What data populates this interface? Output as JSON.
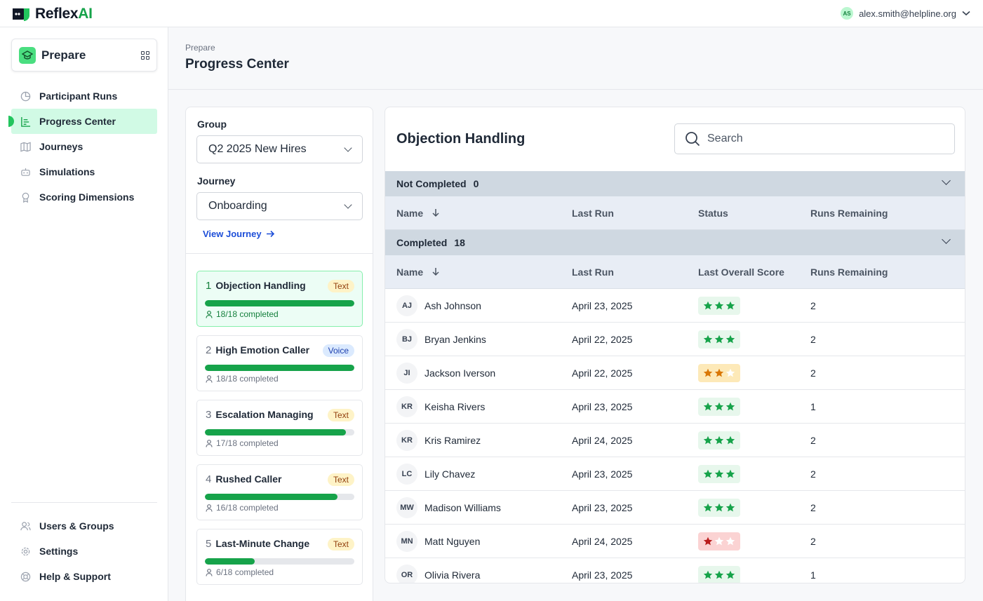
{
  "brand": {
    "name_part1": "Reflex",
    "name_part2": "AI"
  },
  "user": {
    "initials": "AS",
    "email": "alex.smith@helpline.org"
  },
  "sidebar": {
    "app_name": "Prepare",
    "items": [
      {
        "label": "Participant Runs",
        "icon": "pie-chart-icon"
      },
      {
        "label": "Progress Center",
        "icon": "bar-list-icon",
        "active": true
      },
      {
        "label": "Journeys",
        "icon": "map-icon"
      },
      {
        "label": "Simulations",
        "icon": "bot-icon"
      },
      {
        "label": "Scoring Dimensions",
        "icon": "award-icon"
      }
    ],
    "bottom_items": [
      {
        "label": "Users & Groups",
        "icon": "users-icon"
      },
      {
        "label": "Settings",
        "icon": "gear-icon"
      },
      {
        "label": "Help & Support",
        "icon": "lifebuoy-icon"
      }
    ]
  },
  "header": {
    "breadcrumb": "Prepare",
    "title": "Progress Center"
  },
  "filters": {
    "group_label": "Group",
    "group_value": "Q2 2025 New Hires",
    "journey_label": "Journey",
    "journey_value": "Onboarding",
    "view_journey": "View Journey"
  },
  "simulations": [
    {
      "num": "1",
      "title": "Objection Handling",
      "type": "Text",
      "progress": 1.0,
      "completed": "18/18 completed",
      "selected": true
    },
    {
      "num": "2",
      "title": "High Emotion Caller",
      "type": "Voice",
      "progress": 1.0,
      "completed": "18/18 completed"
    },
    {
      "num": "3",
      "title": "Escalation Managing",
      "type": "Text",
      "progress": 0.944,
      "completed": "17/18 completed"
    },
    {
      "num": "4",
      "title": "Rushed Caller",
      "type": "Text",
      "progress": 0.889,
      "completed": "16/18 completed"
    },
    {
      "num": "5",
      "title": "Last-Minute Change",
      "type": "Text",
      "progress": 0.333,
      "completed": "6/18 completed"
    }
  ],
  "detail": {
    "title": "Objection Handling",
    "search_placeholder": "Search",
    "not_completed": {
      "label": "Not Completed",
      "count": "0",
      "columns": [
        "Name",
        "Last Run",
        "Status",
        "Runs Remaining"
      ]
    },
    "completed": {
      "label": "Completed",
      "count": "18",
      "columns": [
        "Name",
        "Last Run",
        "Last Overall Score",
        "Runs Remaining"
      ],
      "rows": [
        {
          "initials": "AJ",
          "name": "Ash Johnson",
          "last_run": "April 23, 2025",
          "score": 3,
          "runs_remaining": "2"
        },
        {
          "initials": "BJ",
          "name": "Bryan Jenkins",
          "last_run": "April 22, 2025",
          "score": 3,
          "runs_remaining": "2"
        },
        {
          "initials": "JI",
          "name": "Jackson Iverson",
          "last_run": "April 22, 2025",
          "score": 2,
          "runs_remaining": "2"
        },
        {
          "initials": "KR",
          "name": "Keisha Rivers",
          "last_run": "April 23, 2025",
          "score": 3,
          "runs_remaining": "1"
        },
        {
          "initials": "KR",
          "name": "Kris Ramirez",
          "last_run": "April 24, 2025",
          "score": 3,
          "runs_remaining": "2"
        },
        {
          "initials": "LC",
          "name": "Lily Chavez",
          "last_run": "April 23, 2025",
          "score": 3,
          "runs_remaining": "2"
        },
        {
          "initials": "MW",
          "name": "Madison Williams",
          "last_run": "April 23, 2025",
          "score": 3,
          "runs_remaining": "2"
        },
        {
          "initials": "MN",
          "name": "Matt Nguyen",
          "last_run": "April 24, 2025",
          "score": 1,
          "runs_remaining": "2"
        },
        {
          "initials": "OR",
          "name": "Olivia Rivera",
          "last_run": "April 23, 2025",
          "score": 3,
          "runs_remaining": "1"
        }
      ]
    }
  },
  "colors": {
    "accent": "#16a34a",
    "accent_light": "#d1fae5",
    "star_gold": "#d97706",
    "star_red": "#b91c1c",
    "section_bg": "#cfd8e1"
  }
}
